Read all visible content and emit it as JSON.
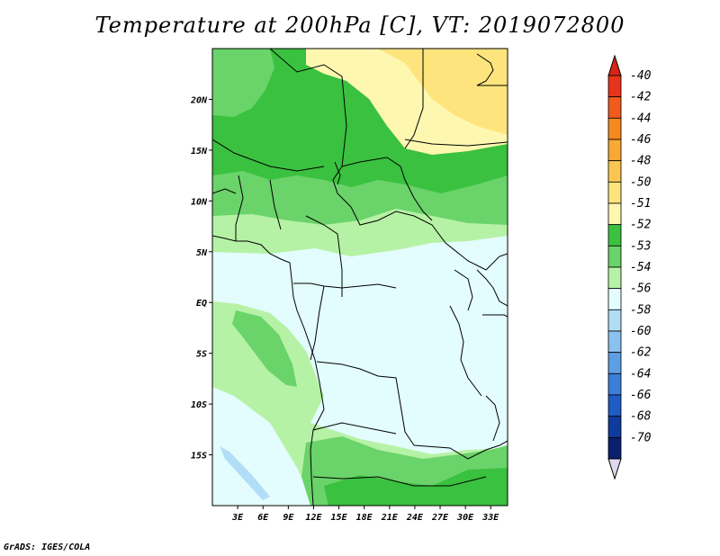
{
  "title": "Temperature at 200hPa [C], VT: 2019072800",
  "credit": "GrADS: IGES/COLA",
  "map": {
    "lon_range": [
      0,
      35
    ],
    "lat_range": [
      -20,
      25
    ],
    "lon_ticks": [
      "3E",
      "6E",
      "9E",
      "12E",
      "15E",
      "18E",
      "21E",
      "24E",
      "27E",
      "30E",
      "33E"
    ],
    "lat_ticks": [
      "20N",
      "15N",
      "10N",
      "5N",
      "EQ",
      "5S",
      "10S",
      "15S"
    ]
  },
  "colorbar": {
    "labels": [
      "-40",
      "-42",
      "-44",
      "-46",
      "-48",
      "-50",
      "-51",
      "-52",
      "-53",
      "-54",
      "-56",
      "-58",
      "-60",
      "-62",
      "-64",
      "-66",
      "-68",
      "-70"
    ],
    "colors": [
      "#e8341c",
      "#f25a1e",
      "#f78820",
      "#f9a833",
      "#fbc551",
      "#fde47c",
      "#fdf7b0",
      "#3ac13f",
      "#6ad36a",
      "#b6f2a5",
      "#e3fcfd",
      "#b2ddf7",
      "#8bc1ef",
      "#5e9fe4",
      "#3b7fd8",
      "#1f5cc3",
      "#0f3b9e",
      "#0a1f6e"
    ],
    "end_caps": {
      "top": "#d62417",
      "bottom": "#e0d8f0"
    }
  },
  "fields": {
    "colors_used": {
      "c50": "#fde47c",
      "c51": "#fdf7b0",
      "c52": "#3ac13f",
      "c53": "#6ad36a",
      "c54": "#b6f2a5",
      "c56": "#e3fcfd",
      "c58": "#b2ddf7",
      "c60": "#8bc1ef"
    }
  }
}
